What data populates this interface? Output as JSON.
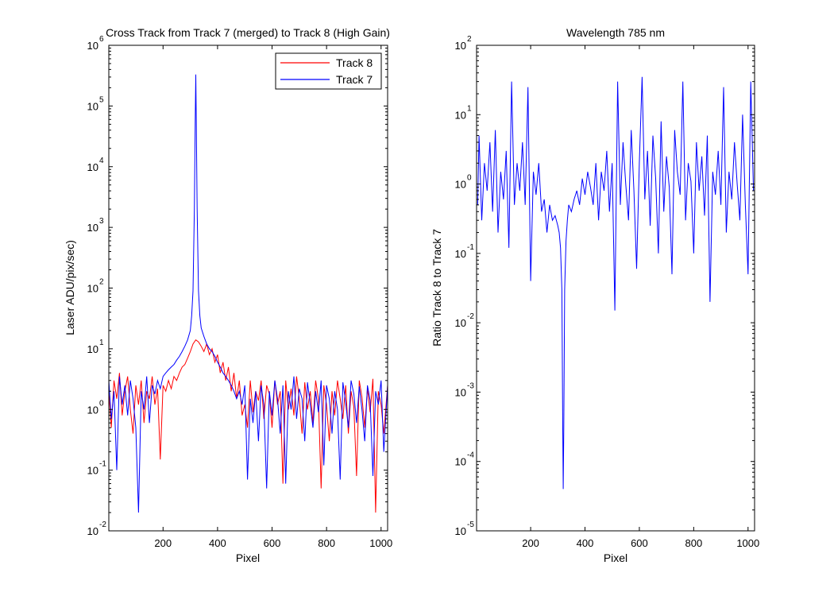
{
  "chart_data": [
    {
      "type": "line",
      "title": "Cross Track from Track 7 (merged) to Track 8 (High Gain)",
      "xlabel": "Pixel",
      "ylabel": "Laser ADU/pix/sec)",
      "xlim": [
        1,
        1024
      ],
      "ylim": [
        0.01,
        1000000
      ],
      "yscale": "log",
      "x_ticks": [
        200,
        400,
        600,
        800,
        1000
      ],
      "y_ticks": [
        {
          "value": 0.01,
          "base": "10",
          "exp": "-2"
        },
        {
          "value": 0.1,
          "base": "10",
          "exp": "-1"
        },
        {
          "value": 1,
          "base": "10",
          "exp": "0"
        },
        {
          "value": 10,
          "base": "10",
          "exp": "1"
        },
        {
          "value": 100,
          "base": "10",
          "exp": "2"
        },
        {
          "value": 1000,
          "base": "10",
          "exp": "3"
        },
        {
          "value": 10000,
          "base": "10",
          "exp": "4"
        },
        {
          "value": 100000,
          "base": "10",
          "exp": "5"
        },
        {
          "value": 1000000,
          "base": "10",
          "exp": "6"
        }
      ],
      "legend": {
        "position": "top-right",
        "entries": [
          "Track 8",
          "Track 7"
        ]
      },
      "series": [
        {
          "name": "Track 8",
          "color": "#ff0000",
          "x": [
            1,
            10,
            20,
            30,
            40,
            50,
            60,
            70,
            80,
            90,
            100,
            110,
            120,
            130,
            140,
            150,
            160,
            170,
            180,
            190,
            200,
            210,
            220,
            230,
            240,
            250,
            260,
            270,
            280,
            290,
            300,
            310,
            320,
            330,
            340,
            350,
            360,
            370,
            380,
            390,
            400,
            410,
            420,
            430,
            440,
            450,
            460,
            470,
            480,
            490,
            500,
            510,
            520,
            530,
            540,
            550,
            560,
            570,
            580,
            590,
            600,
            610,
            620,
            630,
            640,
            650,
            660,
            670,
            680,
            690,
            700,
            710,
            720,
            730,
            740,
            750,
            760,
            770,
            780,
            790,
            800,
            810,
            820,
            830,
            840,
            850,
            860,
            870,
            880,
            890,
            900,
            910,
            920,
            930,
            940,
            950,
            960,
            970,
            980,
            990,
            1000,
            1010,
            1024
          ],
          "y": [
            2,
            0.5,
            3,
            1.5,
            4,
            0.8,
            2,
            3.5,
            1,
            0.4,
            2.5,
            1.2,
            3,
            0.6,
            2,
            1.5,
            3.5,
            1.2,
            2.2,
            0.15,
            2.5,
            2,
            3,
            2.2,
            3.5,
            3,
            4,
            5,
            5.5,
            7,
            9,
            12,
            14,
            13,
            11,
            9,
            12,
            8,
            10,
            6,
            8,
            4,
            6,
            3,
            5,
            2,
            4,
            1.5,
            3,
            0.8,
            1.2,
            0.5,
            3,
            0.9,
            2,
            1.4,
            3,
            0.7,
            2.5,
            1.8,
            0.5,
            3,
            1.2,
            2,
            0.06,
            3,
            1,
            2.2,
            0.8,
            3.5,
            1.5,
            0.4,
            2.8,
            1,
            2,
            0.6,
            3,
            1.5,
            0.05,
            2.5,
            1.2,
            0.3,
            2,
            0.8,
            3,
            1.5,
            0.7,
            2.5,
            0.4,
            2,
            1.1,
            0.08,
            3,
            1.6,
            0.5,
            2.2,
            0.9,
            3.2,
            0.02,
            2,
            1.2,
            0.4,
            2.5
          ]
        },
        {
          "name": "Track 7",
          "color": "#0000ff",
          "x": [
            1,
            10,
            20,
            30,
            40,
            50,
            60,
            70,
            80,
            90,
            100,
            110,
            120,
            130,
            140,
            150,
            160,
            170,
            180,
            190,
            200,
            210,
            220,
            230,
            240,
            250,
            260,
            270,
            280,
            290,
            300,
            305,
            310,
            315,
            318,
            320,
            322,
            325,
            330,
            335,
            340,
            350,
            360,
            370,
            380,
            390,
            400,
            410,
            420,
            430,
            440,
            450,
            460,
            470,
            480,
            490,
            500,
            510,
            520,
            530,
            540,
            550,
            560,
            570,
            580,
            590,
            600,
            610,
            620,
            630,
            640,
            650,
            660,
            670,
            680,
            690,
            700,
            710,
            720,
            730,
            740,
            750,
            760,
            770,
            780,
            790,
            800,
            810,
            820,
            830,
            840,
            850,
            860,
            870,
            880,
            890,
            900,
            910,
            920,
            930,
            940,
            950,
            960,
            970,
            980,
            990,
            1000,
            1010,
            1024
          ],
          "y": [
            3,
            0.7,
            2,
            0.1,
            3.5,
            1.2,
            2.5,
            0.8,
            3,
            1.5,
            0.5,
            0.02,
            2,
            1,
            3.5,
            0.6,
            2.5,
            1.8,
            3,
            2.2,
            3.5,
            4,
            4.5,
            5,
            5.5,
            6.5,
            7.5,
            9,
            11,
            14,
            20,
            35,
            90,
            2000,
            60000,
            330000,
            60000,
            2000,
            90,
            35,
            22,
            16,
            12,
            10,
            9,
            7.5,
            6,
            5,
            4,
            3.5,
            3,
            2.5,
            2,
            1.5,
            2,
            1.2,
            2.5,
            0.07,
            1.5,
            0.6,
            2,
            0.3,
            2.5,
            1.2,
            0.05,
            2,
            0.8,
            3,
            1.5,
            0.4,
            2.5,
            0.06,
            2,
            1,
            3.5,
            0.7,
            2.2,
            1.5,
            0.3,
            2.8,
            1.2,
            0.5,
            2,
            0.9,
            3,
            0.12,
            2.5,
            1.5,
            0.4,
            2,
            1,
            0.07,
            2.8,
            1.3,
            0.5,
            3,
            1.8,
            0.6,
            2.4,
            1,
            0.3,
            2.5,
            1.4,
            0.08,
            2,
            1.2,
            3,
            0.2,
            2.5
          ]
        }
      ]
    },
    {
      "type": "line",
      "title": "Wavelength 785 nm",
      "xlabel": "Pixel",
      "ylabel": "Ratio Track 8 to Track 7",
      "xlim": [
        1,
        1024
      ],
      "ylim": [
        1e-05,
        100
      ],
      "yscale": "log",
      "x_ticks": [
        200,
        400,
        600,
        800,
        1000
      ],
      "y_ticks": [
        {
          "value": 1e-05,
          "base": "10",
          "exp": "-5"
        },
        {
          "value": 0.0001,
          "base": "10",
          "exp": "-4"
        },
        {
          "value": 0.001,
          "base": "10",
          "exp": "-3"
        },
        {
          "value": 0.01,
          "base": "10",
          "exp": "-2"
        },
        {
          "value": 0.1,
          "base": "10",
          "exp": "-1"
        },
        {
          "value": 1,
          "base": "10",
          "exp": "0"
        },
        {
          "value": 10,
          "base": "10",
          "exp": "1"
        },
        {
          "value": 100,
          "base": "10",
          "exp": "2"
        }
      ],
      "series": [
        {
          "color": "#0000ff",
          "x": [
            5,
            10,
            20,
            30,
            40,
            50,
            60,
            70,
            80,
            90,
            100,
            110,
            120,
            130,
            140,
            150,
            160,
            170,
            180,
            190,
            200,
            210,
            220,
            230,
            240,
            250,
            260,
            270,
            280,
            290,
            300,
            305,
            310,
            315,
            318,
            320,
            322,
            325,
            330,
            335,
            340,
            350,
            360,
            370,
            380,
            390,
            400,
            410,
            420,
            430,
            440,
            450,
            460,
            470,
            480,
            490,
            500,
            510,
            520,
            530,
            540,
            550,
            560,
            570,
            580,
            590,
            600,
            610,
            620,
            630,
            640,
            650,
            660,
            670,
            680,
            690,
            700,
            710,
            720,
            730,
            740,
            750,
            760,
            770,
            780,
            790,
            800,
            810,
            820,
            830,
            840,
            850,
            860,
            870,
            880,
            890,
            900,
            910,
            920,
            930,
            940,
            950,
            960,
            970,
            980,
            990,
            1000,
            1010,
            1020
          ],
          "y": [
            0.5,
            5,
            0.3,
            2,
            0.8,
            4,
            0.4,
            6,
            0.2,
            1.5,
            0.6,
            3,
            0.12,
            30,
            0.5,
            2,
            0.8,
            4,
            0.5,
            25,
            0.04,
            1.5,
            0.7,
            2,
            0.4,
            0.6,
            0.2,
            0.5,
            0.3,
            0.35,
            0.25,
            0.2,
            0.12,
            0.03,
            0.0003,
            4e-05,
            0.0003,
            0.03,
            0.15,
            0.3,
            0.5,
            0.4,
            0.6,
            0.8,
            0.5,
            1.2,
            0.7,
            1.5,
            0.9,
            0.5,
            2,
            0.3,
            1.5,
            0.8,
            3,
            0.4,
            2,
            0.015,
            30,
            0.5,
            4,
            1,
            0.3,
            6,
            0.8,
            0.06,
            2,
            35,
            0.6,
            3,
            0.25,
            5,
            1.2,
            0.1,
            8,
            0.4,
            2.5,
            0.9,
            0.05,
            6,
            1.5,
            0.7,
            30,
            0.3,
            2,
            1.1,
            0.1,
            4,
            0.8,
            2.5,
            0.35,
            5,
            0.02,
            1.5,
            0.7,
            3,
            0.5,
            25,
            0.2,
            1.5,
            0.6,
            4,
            1,
            0.3,
            10,
            0.5,
            0.05,
            30,
            0.8
          ]
        }
      ]
    }
  ]
}
